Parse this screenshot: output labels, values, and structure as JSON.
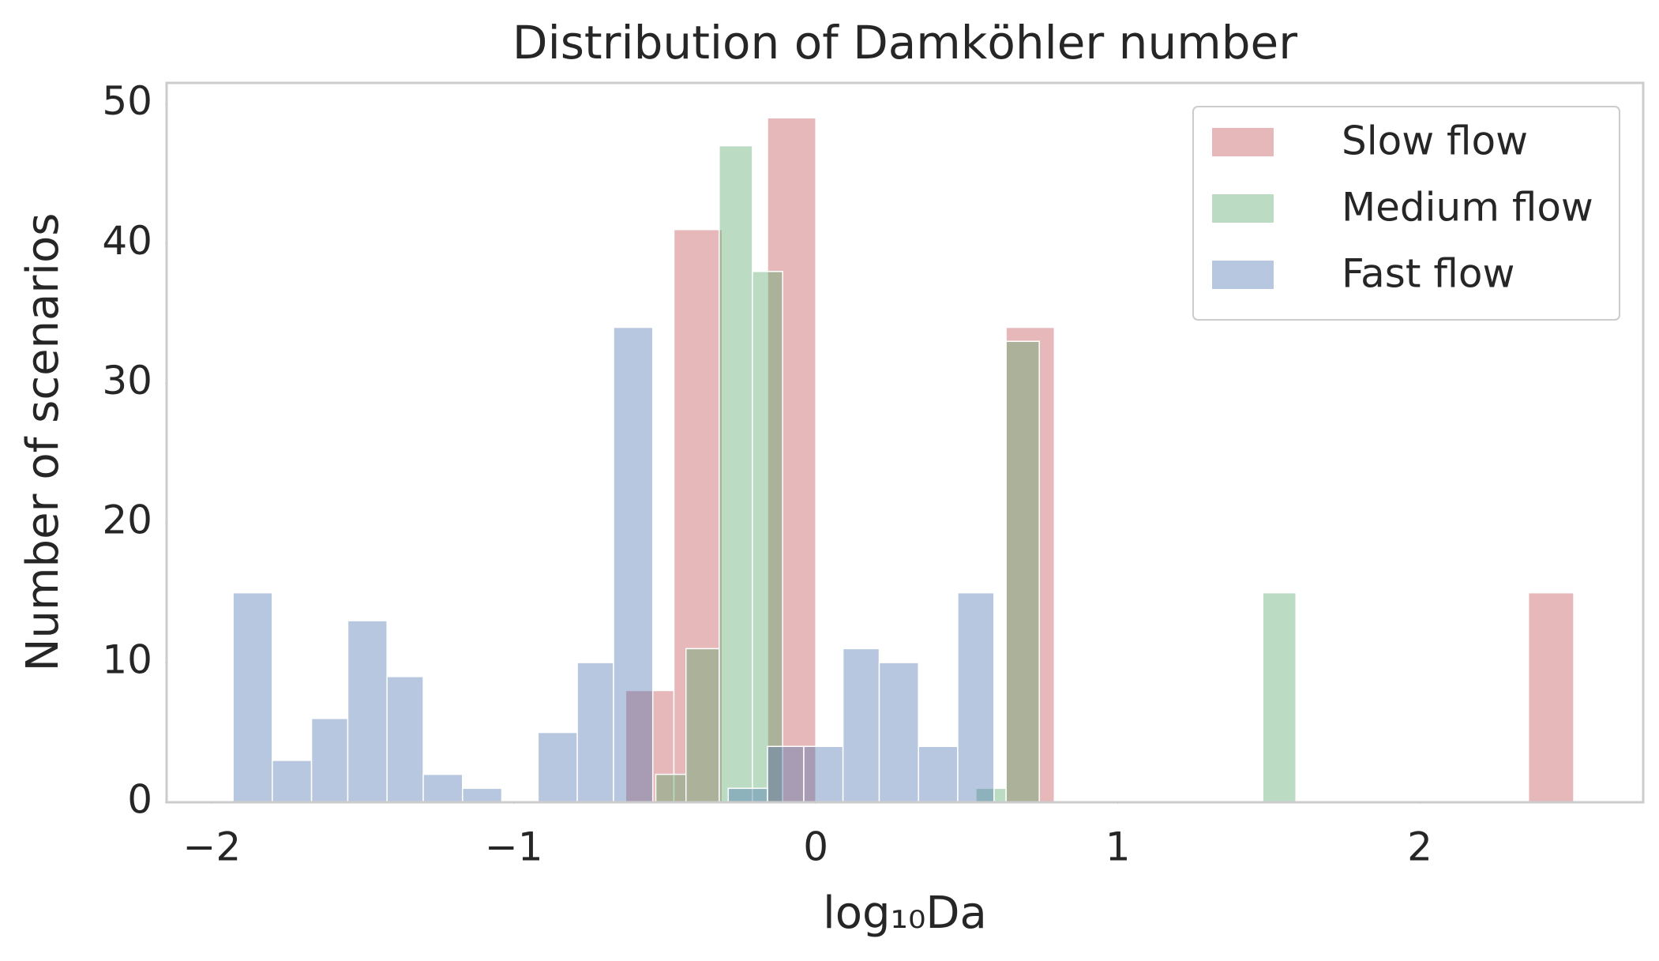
{
  "chart_data": {
    "type": "histogram",
    "title": "Distribution of Damkӧhler number",
    "x_label": "log₁₀Da",
    "y_label": "Number of scenarios",
    "xlim": [
      -2.15,
      2.74
    ],
    "ylim": [
      0,
      51.5
    ],
    "xticks": [
      {
        "value": -2,
        "label": "−2"
      },
      {
        "value": -1,
        "label": "−1"
      },
      0,
      1,
      2
    ],
    "yticks": [
      0,
      10,
      20,
      30,
      40,
      50
    ],
    "grid": false,
    "legend": "upper right",
    "opacity": 0.4,
    "series": [
      {
        "name": "Slow flow",
        "color": "#c44e52",
        "bins": [
          -0.63,
          -0.47,
          -0.31,
          -0.16,
          0.0,
          0.16,
          0.31,
          0.47,
          0.63,
          0.79,
          0.94,
          1.1,
          1.26,
          1.41,
          1.57,
          1.73,
          1.89,
          2.04,
          2.2,
          2.36,
          2.51
        ],
        "values": [
          8,
          41,
          0,
          49,
          0,
          0,
          0,
          0,
          34,
          0,
          0,
          0,
          0,
          0,
          0,
          0,
          0,
          0,
          0,
          15
        ]
      },
      {
        "name": "Medium flow",
        "color": "#55a868",
        "bins": [
          -0.53,
          -0.43,
          -0.32,
          -0.21,
          -0.11,
          0.0,
          0.1,
          0.21,
          0.32,
          0.42,
          0.53,
          0.63,
          0.74,
          0.84,
          0.95,
          1.06,
          1.16,
          1.27,
          1.37,
          1.48,
          1.59
        ],
        "values": [
          2,
          11,
          47,
          38,
          0,
          0,
          0,
          0,
          0,
          0,
          1,
          33,
          0,
          0,
          0,
          0,
          0,
          0,
          0,
          15
        ]
      },
      {
        "name": "Fast flow",
        "color": "#4c72b0",
        "bins": [
          -1.93,
          -1.8,
          -1.67,
          -1.55,
          -1.42,
          -1.3,
          -1.17,
          -1.04,
          -0.92,
          -0.79,
          -0.67,
          -0.54,
          -0.41,
          -0.29,
          -0.16,
          -0.04,
          0.09,
          0.21,
          0.34,
          0.47,
          0.59
        ],
        "values": [
          15,
          3,
          6,
          13,
          9,
          2,
          1,
          0,
          5,
          10,
          34,
          0,
          0,
          1,
          4,
          4,
          11,
          10,
          4,
          15
        ]
      }
    ]
  }
}
